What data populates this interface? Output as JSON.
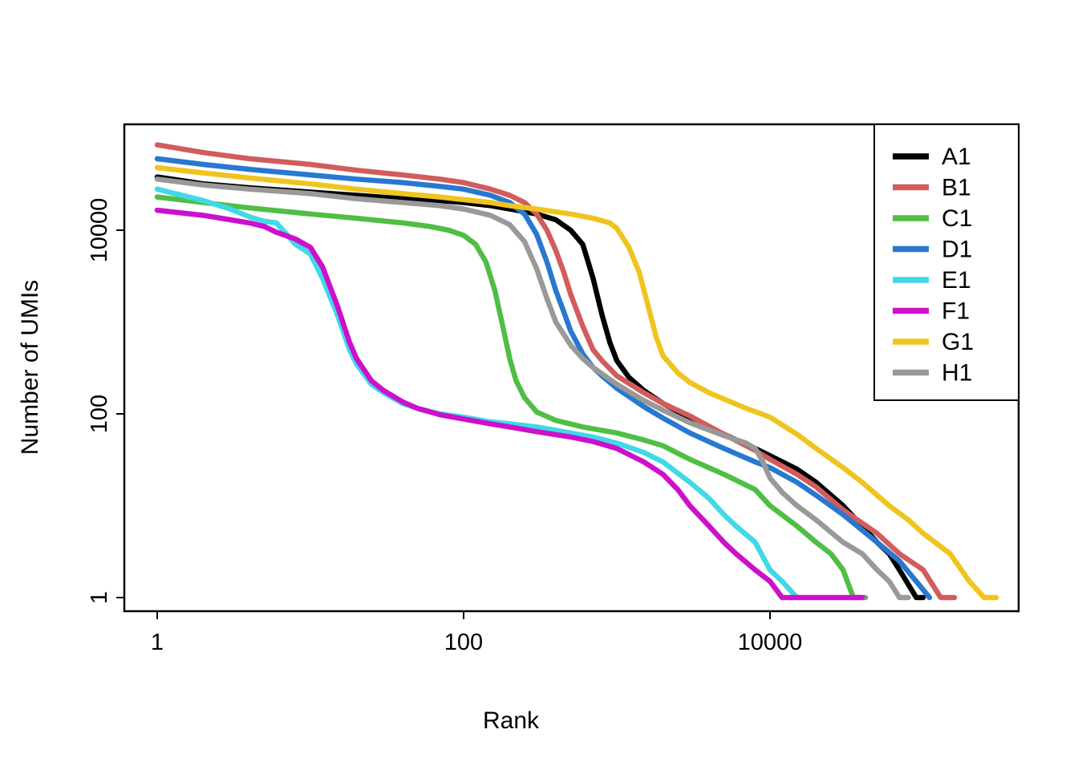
{
  "figure": {
    "background": "#ffffff",
    "frame_color": "#000000"
  },
  "chart_data": {
    "type": "line",
    "title": "",
    "xlabel": "Rank",
    "ylabel": "Number of UMIs",
    "xscale": "log",
    "yscale": "log",
    "xlim": [
      1,
      400000
    ],
    "ylim": [
      1,
      90000
    ],
    "xticks": [
      1,
      100,
      10000
    ],
    "xtick_labels": [
      "1",
      "100",
      "10000"
    ],
    "yticks": [
      1,
      100,
      10000
    ],
    "ytick_labels": [
      "1",
      "100",
      "10000"
    ],
    "grid": false,
    "legend_position": "top-right",
    "series": [
      {
        "name": "A1",
        "color": "#000000",
        "points": [
          [
            1,
            38000
          ],
          [
            2,
            32000
          ],
          [
            4,
            29000
          ],
          [
            10,
            26000
          ],
          [
            20,
            24000
          ],
          [
            40,
            22000
          ],
          [
            70,
            21000
          ],
          [
            100,
            20000
          ],
          [
            150,
            18500
          ],
          [
            200,
            17000
          ],
          [
            300,
            15000
          ],
          [
            400,
            13000
          ],
          [
            500,
            10000
          ],
          [
            600,
            7000
          ],
          [
            700,
            3000
          ],
          [
            800,
            1200
          ],
          [
            900,
            600
          ],
          [
            1000,
            380
          ],
          [
            1200,
            250
          ],
          [
            1500,
            180
          ],
          [
            2000,
            130
          ],
          [
            3000,
            90
          ],
          [
            5000,
            60
          ],
          [
            8000,
            42
          ],
          [
            10000,
            35
          ],
          [
            15000,
            25
          ],
          [
            20000,
            18
          ],
          [
            30000,
            10
          ],
          [
            40000,
            6
          ],
          [
            50000,
            4
          ],
          [
            60000,
            3
          ],
          [
            70000,
            2
          ],
          [
            90000,
            1
          ],
          [
            100000,
            1
          ]
        ]
      },
      {
        "name": "B1",
        "color": "#D25C5C",
        "points": [
          [
            1,
            85000
          ],
          [
            2,
            70000
          ],
          [
            4,
            60000
          ],
          [
            10,
            52000
          ],
          [
            20,
            45000
          ],
          [
            40,
            40000
          ],
          [
            70,
            36000
          ],
          [
            100,
            33000
          ],
          [
            150,
            28000
          ],
          [
            200,
            24000
          ],
          [
            250,
            20000
          ],
          [
            300,
            15000
          ],
          [
            350,
            10000
          ],
          [
            400,
            6000
          ],
          [
            450,
            3500
          ],
          [
            500,
            2000
          ],
          [
            600,
            900
          ],
          [
            700,
            500
          ],
          [
            800,
            380
          ],
          [
            1000,
            260
          ],
          [
            1500,
            170
          ],
          [
            2000,
            130
          ],
          [
            3000,
            95
          ],
          [
            5000,
            60
          ],
          [
            8000,
            40
          ],
          [
            10000,
            32
          ],
          [
            15000,
            22
          ],
          [
            20000,
            16
          ],
          [
            30000,
            9
          ],
          [
            50000,
            5
          ],
          [
            70000,
            3
          ],
          [
            100000,
            2
          ],
          [
            130000,
            1
          ],
          [
            160000,
            1
          ]
        ]
      },
      {
        "name": "C1",
        "color": "#50BE45",
        "points": [
          [
            1,
            23000
          ],
          [
            2,
            20000
          ],
          [
            4,
            17500
          ],
          [
            10,
            15000
          ],
          [
            20,
            13500
          ],
          [
            40,
            12000
          ],
          [
            60,
            11000
          ],
          [
            80,
            10000
          ],
          [
            100,
            8800
          ],
          [
            120,
            7000
          ],
          [
            140,
            4500
          ],
          [
            160,
            2200
          ],
          [
            180,
            900
          ],
          [
            200,
            400
          ],
          [
            220,
            230
          ],
          [
            250,
            150
          ],
          [
            300,
            105
          ],
          [
            400,
            85
          ],
          [
            600,
            72
          ],
          [
            1000,
            62
          ],
          [
            1500,
            52
          ],
          [
            2000,
            45
          ],
          [
            3000,
            32
          ],
          [
            5000,
            22
          ],
          [
            8000,
            15
          ],
          [
            10000,
            10
          ],
          [
            15000,
            6
          ],
          [
            20000,
            4
          ],
          [
            25000,
            3
          ],
          [
            30000,
            2
          ],
          [
            35000,
            1
          ],
          [
            42000,
            1
          ]
        ]
      },
      {
        "name": "D1",
        "color": "#2878D0",
        "points": [
          [
            1,
            60000
          ],
          [
            2,
            52000
          ],
          [
            4,
            46000
          ],
          [
            10,
            40000
          ],
          [
            20,
            36000
          ],
          [
            40,
            33000
          ],
          [
            70,
            30000
          ],
          [
            100,
            28000
          ],
          [
            150,
            24000
          ],
          [
            200,
            20000
          ],
          [
            250,
            15000
          ],
          [
            300,
            9000
          ],
          [
            350,
            4500
          ],
          [
            400,
            2200
          ],
          [
            450,
            1300
          ],
          [
            500,
            800
          ],
          [
            600,
            450
          ],
          [
            700,
            320
          ],
          [
            800,
            260
          ],
          [
            1000,
            190
          ],
          [
            1500,
            120
          ],
          [
            2000,
            90
          ],
          [
            3000,
            62
          ],
          [
            5000,
            42
          ],
          [
            8000,
            30
          ],
          [
            10000,
            26
          ],
          [
            15000,
            18
          ],
          [
            20000,
            13
          ],
          [
            30000,
            8
          ],
          [
            50000,
            4
          ],
          [
            70000,
            2.5
          ],
          [
            90000,
            1.5
          ],
          [
            110000,
            1
          ]
        ]
      },
      {
        "name": "E1",
        "color": "#40D9E6",
        "points": [
          [
            1,
            28000
          ],
          [
            2,
            21000
          ],
          [
            3,
            17000
          ],
          [
            4,
            14000
          ],
          [
            5,
            12500
          ],
          [
            6,
            12000
          ],
          [
            7,
            9000
          ],
          [
            8,
            7000
          ],
          [
            10,
            5500
          ],
          [
            12,
            3000
          ],
          [
            15,
            1200
          ],
          [
            18,
            500
          ],
          [
            20,
            350
          ],
          [
            25,
            210
          ],
          [
            30,
            170
          ],
          [
            40,
            130
          ],
          [
            50,
            115
          ],
          [
            70,
            100
          ],
          [
            100,
            92
          ],
          [
            150,
            82
          ],
          [
            200,
            78
          ],
          [
            300,
            72
          ],
          [
            500,
            62
          ],
          [
            700,
            56
          ],
          [
            1000,
            48
          ],
          [
            1500,
            38
          ],
          [
            2000,
            30
          ],
          [
            3000,
            18
          ],
          [
            4000,
            12
          ],
          [
            5000,
            8
          ],
          [
            6000,
            6
          ],
          [
            8000,
            4
          ],
          [
            10000,
            2
          ],
          [
            12000,
            1.5
          ],
          [
            15000,
            1
          ]
        ]
      },
      {
        "name": "F1",
        "color": "#CC10CC",
        "points": [
          [
            1,
            16500
          ],
          [
            2,
            14500
          ],
          [
            3,
            13000
          ],
          [
            4,
            12000
          ],
          [
            5,
            11000
          ],
          [
            6,
            9500
          ],
          [
            8,
            8000
          ],
          [
            10,
            6500
          ],
          [
            12,
            4000
          ],
          [
            15,
            1500
          ],
          [
            18,
            600
          ],
          [
            20,
            400
          ],
          [
            25,
            230
          ],
          [
            30,
            180
          ],
          [
            40,
            135
          ],
          [
            50,
            115
          ],
          [
            70,
            98
          ],
          [
            100,
            88
          ],
          [
            150,
            78
          ],
          [
            200,
            72
          ],
          [
            300,
            64
          ],
          [
            500,
            56
          ],
          [
            700,
            50
          ],
          [
            1000,
            42
          ],
          [
            1500,
            30
          ],
          [
            2000,
            22
          ],
          [
            2500,
            15
          ],
          [
            3000,
            10
          ],
          [
            4000,
            6
          ],
          [
            5000,
            4
          ],
          [
            6000,
            3
          ],
          [
            8000,
            2
          ],
          [
            10000,
            1.5
          ],
          [
            12000,
            1
          ],
          [
            20000,
            1
          ],
          [
            40000,
            1
          ]
        ]
      },
      {
        "name": "G1",
        "color": "#F0C420",
        "points": [
          [
            1,
            48000
          ],
          [
            2,
            42000
          ],
          [
            4,
            37000
          ],
          [
            10,
            32000
          ],
          [
            20,
            28000
          ],
          [
            40,
            25000
          ],
          [
            70,
            23000
          ],
          [
            100,
            21500
          ],
          [
            150,
            20000
          ],
          [
            200,
            18500
          ],
          [
            300,
            17000
          ],
          [
            500,
            15000
          ],
          [
            700,
            13500
          ],
          [
            900,
            12000
          ],
          [
            1000,
            10500
          ],
          [
            1200,
            6500
          ],
          [
            1400,
            3500
          ],
          [
            1600,
            1500
          ],
          [
            1800,
            700
          ],
          [
            2000,
            430
          ],
          [
            2500,
            280
          ],
          [
            3000,
            220
          ],
          [
            4000,
            170
          ],
          [
            5000,
            145
          ],
          [
            7000,
            115
          ],
          [
            10000,
            92
          ],
          [
            15000,
            60
          ],
          [
            20000,
            42
          ],
          [
            30000,
            26
          ],
          [
            40000,
            18
          ],
          [
            60000,
            10
          ],
          [
            80000,
            7
          ],
          [
            100000,
            5
          ],
          [
            150000,
            3
          ],
          [
            200000,
            1.5
          ],
          [
            250000,
            1
          ],
          [
            300000,
            1
          ]
        ]
      },
      {
        "name": "H1",
        "color": "#999999",
        "points": [
          [
            1,
            36000
          ],
          [
            2,
            31000
          ],
          [
            4,
            28000
          ],
          [
            10,
            25000
          ],
          [
            20,
            22000
          ],
          [
            40,
            20000
          ],
          [
            70,
            18500
          ],
          [
            100,
            17000
          ],
          [
            150,
            14500
          ],
          [
            200,
            11500
          ],
          [
            250,
            7500
          ],
          [
            300,
            3800
          ],
          [
            350,
            1800
          ],
          [
            400,
            1000
          ],
          [
            500,
            560
          ],
          [
            600,
            400
          ],
          [
            700,
            320
          ],
          [
            1000,
            210
          ],
          [
            1500,
            140
          ],
          [
            2000,
            110
          ],
          [
            3000,
            80
          ],
          [
            5000,
            58
          ],
          [
            7000,
            48
          ],
          [
            8000,
            42
          ],
          [
            9000,
            30
          ],
          [
            10000,
            20
          ],
          [
            12000,
            14
          ],
          [
            15000,
            10
          ],
          [
            20000,
            7
          ],
          [
            30000,
            4
          ],
          [
            40000,
            3
          ],
          [
            50000,
            2
          ],
          [
            60000,
            1.5
          ],
          [
            70000,
            1
          ],
          [
            80000,
            1
          ]
        ]
      }
    ]
  }
}
